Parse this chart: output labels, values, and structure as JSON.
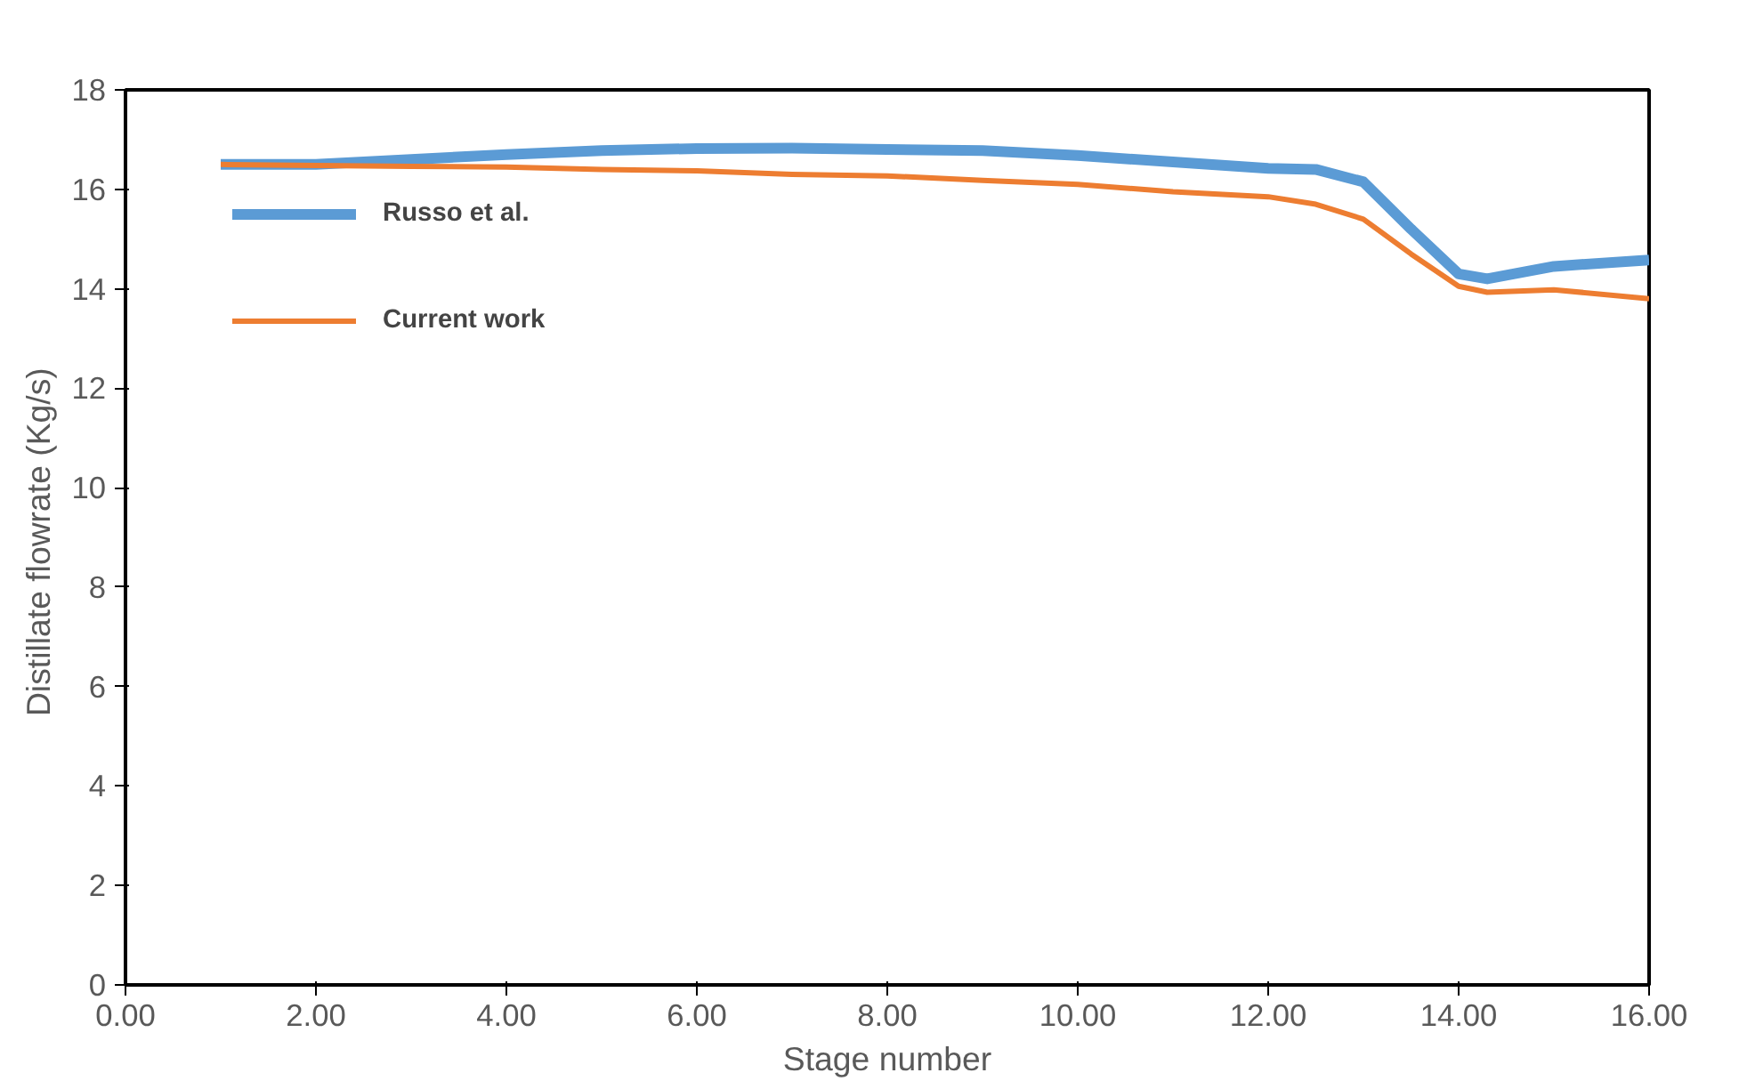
{
  "chart_data": {
    "type": "line",
    "xlabel": "Stage number",
    "ylabel": "Distillate flowrate  (Kg/s)",
    "x": [
      1,
      2,
      3,
      4,
      5,
      6,
      7,
      8,
      9,
      10,
      11,
      12,
      12.5,
      13,
      13.5,
      14,
      14.3,
      15,
      16
    ],
    "series": [
      {
        "name": "Russo et al.",
        "color": "#5b9bd5",
        "values": [
          16.5,
          16.5,
          16.6,
          16.7,
          16.78,
          16.82,
          16.83,
          16.8,
          16.78,
          16.68,
          16.55,
          16.42,
          16.4,
          16.15,
          15.2,
          14.3,
          14.2,
          14.45,
          14.58
        ]
      },
      {
        "name": "Current work",
        "color": "#ed7d31",
        "values": [
          16.5,
          16.48,
          16.46,
          16.45,
          16.4,
          16.37,
          16.3,
          16.27,
          16.18,
          16.1,
          15.95,
          15.85,
          15.7,
          15.4,
          14.7,
          14.05,
          13.93,
          13.98,
          13.8
        ]
      }
    ],
    "xlim": [
      0,
      16
    ],
    "ylim": [
      0,
      18
    ],
    "xticks": [
      {
        "value": 0,
        "label": "0.00"
      },
      {
        "value": 2,
        "label": "2.00"
      },
      {
        "value": 4,
        "label": "4.00"
      },
      {
        "value": 6,
        "label": "6.00"
      },
      {
        "value": 8,
        "label": "8.00"
      },
      {
        "value": 10,
        "label": "10.00"
      },
      {
        "value": 12,
        "label": "12.00"
      },
      {
        "value": 14,
        "label": "14.00"
      },
      {
        "value": 16,
        "label": "16.00"
      }
    ],
    "yticks": [
      0,
      2,
      4,
      6,
      8,
      10,
      12,
      14,
      16,
      18
    ],
    "grid": false,
    "legend": "top left",
    "marker": "none",
    "line_style": "solid"
  }
}
